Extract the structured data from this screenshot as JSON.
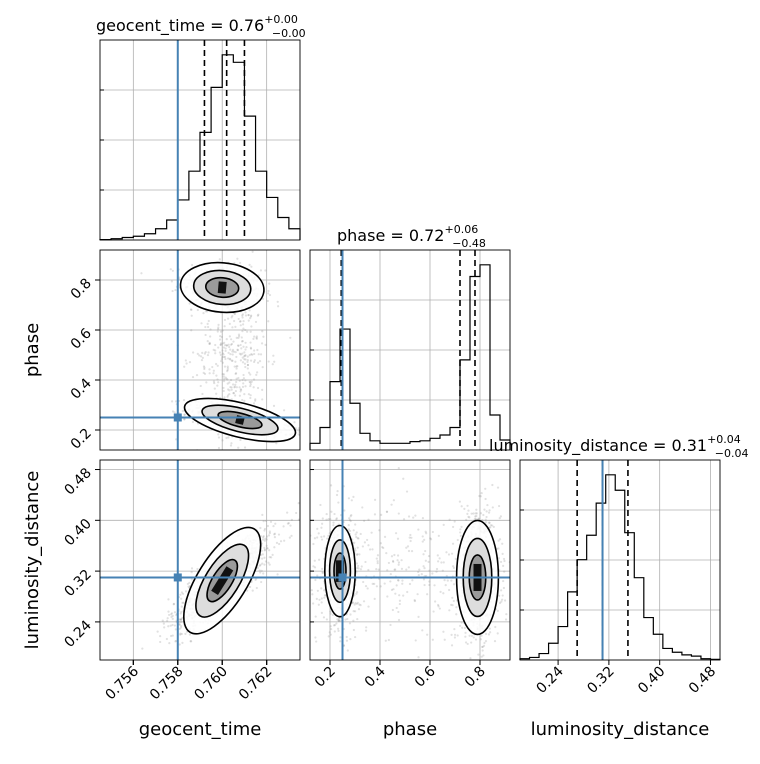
{
  "colors": {
    "truth": "#4682b4",
    "line": "#000000",
    "grid": "#b0b0b0",
    "scatter": "#888888"
  },
  "chart_data": {
    "type": "corner",
    "parameters": [
      "geocent_time",
      "phase",
      "luminosity_distance"
    ],
    "truth": {
      "geocent_time": 0.758,
      "phase": 0.25,
      "luminosity_distance": 0.31
    },
    "titles": [
      {
        "param": "geocent_time",
        "prefix": "geocent_time = 0.76",
        "sup": "+0.00",
        "sub": "−0.00"
      },
      {
        "param": "phase",
        "prefix": "phase = 0.72",
        "sup": "+0.06",
        "sub": "−0.48"
      },
      {
        "param": "luminosity_distance",
        "prefix": "luminosity_distance = 0.31",
        "sup": "+0.04",
        "sub": "−0.04"
      }
    ],
    "axes": {
      "geocent_time": {
        "range": [
          0.7545,
          0.7635
        ],
        "ticks": [
          0.756,
          0.758,
          0.76,
          0.762
        ],
        "tick_labels": [
          "0.756",
          "0.758",
          "0.760",
          "0.762"
        ]
      },
      "phase": {
        "range": [
          0.12,
          0.92
        ],
        "ticks": [
          0.2,
          0.4,
          0.6,
          0.8
        ],
        "tick_labels": [
          "0.2",
          "0.4",
          "0.6",
          "0.8"
        ]
      },
      "luminosity_distance": {
        "range": [
          0.18,
          0.495
        ],
        "ticks": [
          0.24,
          0.32,
          0.4,
          0.48
        ],
        "tick_labels": [
          "0.24",
          "0.32",
          "0.40",
          "0.48"
        ]
      }
    },
    "marginals": [
      {
        "param": "geocent_time",
        "bin_edges": [
          0.7545,
          0.755,
          0.7555,
          0.756,
          0.7565,
          0.757,
          0.7575,
          0.758,
          0.7585,
          0.759,
          0.7595,
          0.76,
          0.7605,
          0.761,
          0.7615,
          0.762,
          0.7625,
          0.763,
          0.7635
        ],
        "counts": [
          0.3,
          1,
          2,
          3,
          5,
          9,
          16,
          32,
          55,
          86,
          122,
          148,
          142,
          99,
          55,
          34,
          18,
          9
        ],
        "quantiles": [
          0.7592,
          0.7602,
          0.761
        ]
      },
      {
        "param": "phase",
        "bin_edges": [
          0.12,
          0.16,
          0.2,
          0.24,
          0.28,
          0.32,
          0.36,
          0.4,
          0.44,
          0.48,
          0.52,
          0.56,
          0.6,
          0.64,
          0.68,
          0.72,
          0.76,
          0.8,
          0.84,
          0.88,
          0.92
        ],
        "counts": [
          8,
          27,
          82,
          145,
          56,
          20,
          11,
          8,
          8,
          8,
          10,
          11,
          14,
          18,
          27,
          108,
          208,
          222,
          42,
          12
        ],
        "quantiles": [
          0.245,
          0.72,
          0.78
        ]
      },
      {
        "param": "luminosity_distance",
        "bin_edges": [
          0.18,
          0.195,
          0.21,
          0.225,
          0.24,
          0.255,
          0.27,
          0.285,
          0.3,
          0.315,
          0.33,
          0.345,
          0.36,
          0.375,
          0.39,
          0.405,
          0.42,
          0.435,
          0.45,
          0.465,
          0.48,
          0.495
        ],
        "counts": [
          1,
          2,
          5,
          13,
          26,
          53,
          78,
          97,
          122,
          144,
          132,
          99,
          64,
          33,
          20,
          9,
          6,
          4,
          3,
          1,
          0.5
        ],
        "quantiles": [
          0.27,
          0.31,
          0.35
        ]
      }
    ]
  }
}
